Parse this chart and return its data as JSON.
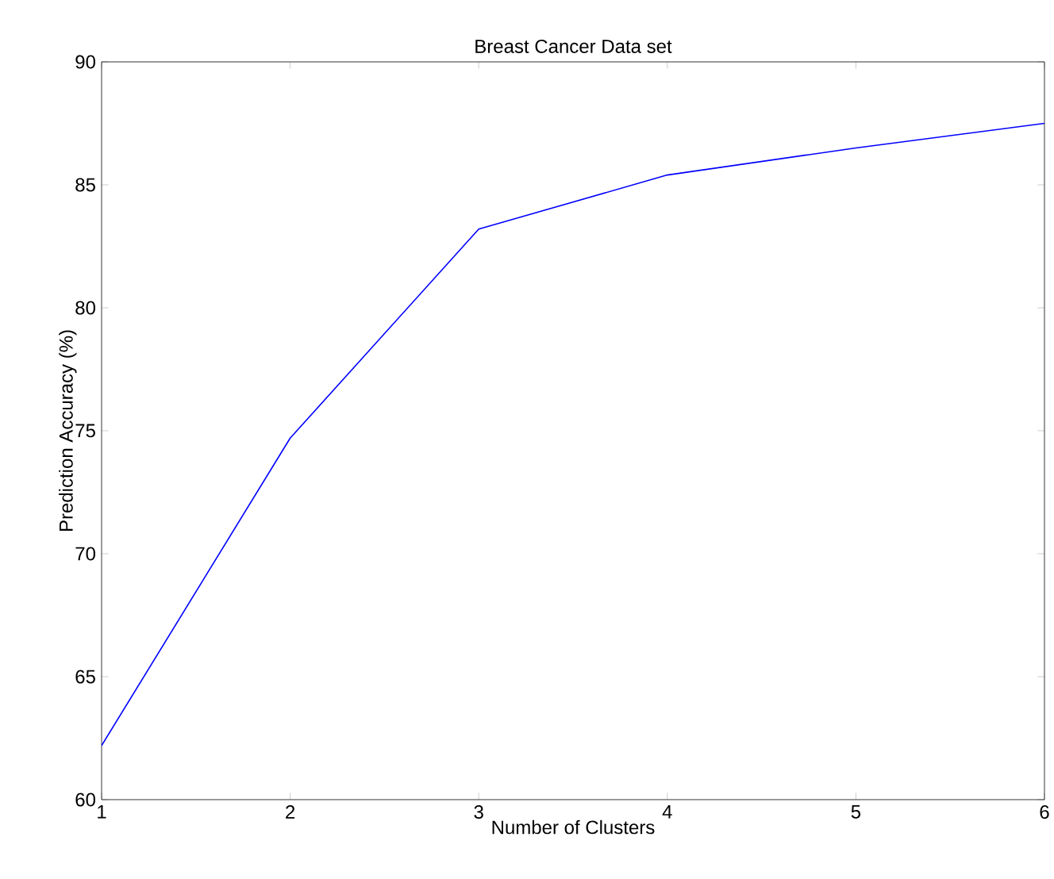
{
  "chart_data": {
    "type": "line",
    "title": "Breast Cancer Data set",
    "xlabel": "Number of Clusters",
    "ylabel": "Prediction Accuracy (%)",
    "x": [
      1,
      2,
      3,
      4,
      5,
      6
    ],
    "series": [
      {
        "color": "#0000ff",
        "values": [
          62.2,
          74.7,
          83.2,
          85.4,
          86.5,
          87.5
        ]
      }
    ],
    "xlim": [
      1,
      6
    ],
    "xticks": [
      1,
      2,
      3,
      4,
      5,
      6
    ],
    "ylim": [
      60,
      90
    ],
    "yticks": [
      60,
      65,
      70,
      75,
      80,
      85,
      90
    ],
    "grid": false,
    "marker": "none",
    "line_style": "solid"
  }
}
